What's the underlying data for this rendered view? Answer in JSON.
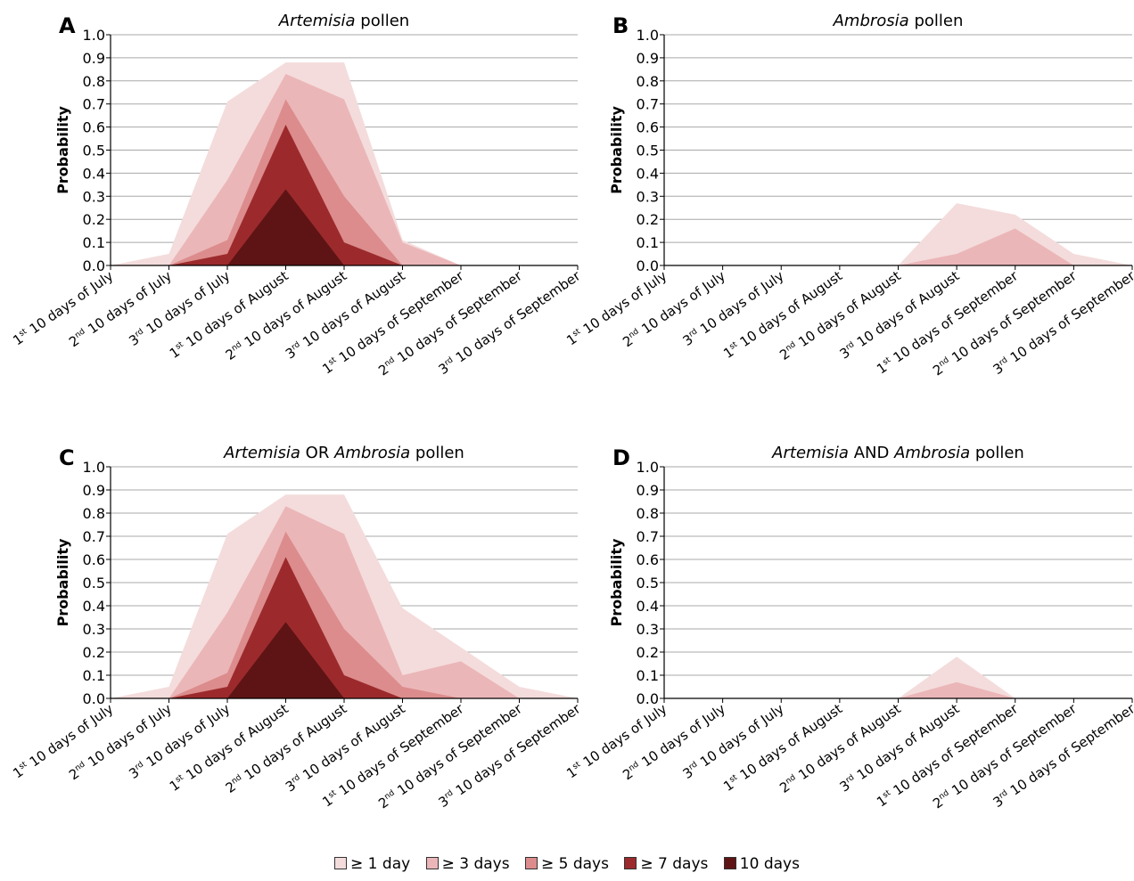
{
  "chart_data": [
    {
      "type": "area",
      "letter": "A",
      "title_parts": [
        {
          "text": "Artemisia",
          "italic": true
        },
        {
          "text": " pollen",
          "italic": false
        }
      ],
      "ylabel": "Probability",
      "ylim": [
        0,
        1.0
      ],
      "yticks": [
        "0.0",
        "0.1",
        "0.2",
        "0.3",
        "0.4",
        "0.5",
        "0.6",
        "0.7",
        "0.8",
        "0.9",
        "1.0"
      ],
      "categories": [
        {
          "ord": "1",
          "sup": "st",
          "rest": " 10 days of July"
        },
        {
          "ord": "2",
          "sup": "nd",
          "rest": " 10 days of July"
        },
        {
          "ord": "3",
          "sup": "rd",
          "rest": " 10 days of July"
        },
        {
          "ord": "1",
          "sup": "st",
          "rest": " 10 days of August"
        },
        {
          "ord": "2",
          "sup": "nd",
          "rest": " 10 days of August"
        },
        {
          "ord": "3",
          "sup": "rd",
          "rest": " 10 days of August"
        },
        {
          "ord": "1",
          "sup": "st",
          "rest": " 10 days of September"
        },
        {
          "ord": "2",
          "sup": "nd",
          "rest": " 10 days of September"
        },
        {
          "ord": "3",
          "sup": "rd",
          "rest": " 10 days of September"
        }
      ],
      "grid": true,
      "series": [
        {
          "name": "≥ 1 day",
          "values": [
            0.0,
            0.05,
            0.71,
            0.88,
            0.88,
            0.11,
            0.0,
            0.0,
            0.0
          ]
        },
        {
          "name": "≥ 3 days",
          "values": [
            0.0,
            0.0,
            0.37,
            0.83,
            0.72,
            0.1,
            0.0,
            0.0,
            0.0
          ]
        },
        {
          "name": "≥ 5 days",
          "values": [
            0.0,
            0.0,
            0.11,
            0.72,
            0.3,
            0.0,
            0.0,
            0.0,
            0.0
          ]
        },
        {
          "name": "≥ 7 days",
          "values": [
            0.0,
            0.0,
            0.05,
            0.61,
            0.1,
            0.0,
            0.0,
            0.0,
            0.0
          ]
        },
        {
          "name": "10 days",
          "values": [
            0.0,
            0.0,
            0.0,
            0.33,
            0.0,
            0.0,
            0.0,
            0.0,
            0.0
          ]
        }
      ]
    },
    {
      "type": "area",
      "letter": "B",
      "title_parts": [
        {
          "text": "Ambrosia",
          "italic": true
        },
        {
          "text": " pollen",
          "italic": false
        }
      ],
      "ylabel": "Probability",
      "ylim": [
        0,
        1.0
      ],
      "yticks": [
        "0.0",
        "0.1",
        "0.2",
        "0.3",
        "0.4",
        "0.5",
        "0.6",
        "0.7",
        "0.8",
        "0.9",
        "1.0"
      ],
      "categories": [
        {
          "ord": "1",
          "sup": "st",
          "rest": " 10 days of July"
        },
        {
          "ord": "2",
          "sup": "nd",
          "rest": " 10 days of July"
        },
        {
          "ord": "3",
          "sup": "rd",
          "rest": " 10 days of July"
        },
        {
          "ord": "1",
          "sup": "st",
          "rest": " 10 days of August"
        },
        {
          "ord": "2",
          "sup": "nd",
          "rest": " 10 days of August"
        },
        {
          "ord": "3",
          "sup": "rd",
          "rest": " 10 days of August"
        },
        {
          "ord": "1",
          "sup": "st",
          "rest": " 10 days of September"
        },
        {
          "ord": "2",
          "sup": "nd",
          "rest": " 10 days of September"
        },
        {
          "ord": "3",
          "sup": "rd",
          "rest": " 10 days of September"
        }
      ],
      "grid": true,
      "series": [
        {
          "name": "≥ 1 day",
          "values": [
            0.0,
            0.0,
            0.0,
            0.0,
            0.0,
            0.27,
            0.22,
            0.05,
            0.0
          ]
        },
        {
          "name": "≥ 3 days",
          "values": [
            0.0,
            0.0,
            0.0,
            0.0,
            0.0,
            0.05,
            0.16,
            0.0,
            0.0
          ]
        },
        {
          "name": "≥ 5 days",
          "values": [
            0.0,
            0.0,
            0.0,
            0.0,
            0.0,
            0.0,
            0.0,
            0.0,
            0.0
          ]
        },
        {
          "name": "≥ 7 days",
          "values": [
            0.0,
            0.0,
            0.0,
            0.0,
            0.0,
            0.0,
            0.0,
            0.0,
            0.0
          ]
        },
        {
          "name": "10 days",
          "values": [
            0.0,
            0.0,
            0.0,
            0.0,
            0.0,
            0.0,
            0.0,
            0.0,
            0.0
          ]
        }
      ]
    },
    {
      "type": "area",
      "letter": "C",
      "title_parts": [
        {
          "text": "Artemisia",
          "italic": true
        },
        {
          "text": " OR ",
          "italic": false
        },
        {
          "text": "Ambrosia",
          "italic": true
        },
        {
          "text": " pollen",
          "italic": false
        }
      ],
      "ylabel": "Probability",
      "ylim": [
        0,
        1.0
      ],
      "yticks": [
        "0.0",
        "0.1",
        "0.2",
        "0.3",
        "0.4",
        "0.5",
        "0.6",
        "0.7",
        "0.8",
        "0.9",
        "1.0"
      ],
      "categories": [
        {
          "ord": "1",
          "sup": "st",
          "rest": " 10 days of July"
        },
        {
          "ord": "2",
          "sup": "nd",
          "rest": " 10 days of July"
        },
        {
          "ord": "3",
          "sup": "rd",
          "rest": " 10 days of July"
        },
        {
          "ord": "1",
          "sup": "st",
          "rest": " 10 days of August"
        },
        {
          "ord": "2",
          "sup": "nd",
          "rest": " 10 days of August"
        },
        {
          "ord": "3",
          "sup": "rd",
          "rest": " 10 days of August"
        },
        {
          "ord": "1",
          "sup": "st",
          "rest": " 10 days of September"
        },
        {
          "ord": "2",
          "sup": "nd",
          "rest": " 10 days of September"
        },
        {
          "ord": "3",
          "sup": "rd",
          "rest": " 10 days of September"
        }
      ],
      "grid": true,
      "series": [
        {
          "name": "≥ 1 day",
          "values": [
            0.0,
            0.05,
            0.71,
            0.88,
            0.88,
            0.39,
            0.22,
            0.05,
            0.0
          ]
        },
        {
          "name": "≥ 3 days",
          "values": [
            0.0,
            0.0,
            0.37,
            0.83,
            0.71,
            0.1,
            0.16,
            0.0,
            0.0
          ]
        },
        {
          "name": "≥ 5 days",
          "values": [
            0.0,
            0.0,
            0.11,
            0.72,
            0.3,
            0.05,
            0.0,
            0.0,
            0.0
          ]
        },
        {
          "name": "≥ 7 days",
          "values": [
            0.0,
            0.0,
            0.05,
            0.61,
            0.1,
            0.0,
            0.0,
            0.0,
            0.0
          ]
        },
        {
          "name": "10 days",
          "values": [
            0.0,
            0.0,
            0.0,
            0.33,
            0.0,
            0.0,
            0.0,
            0.0,
            0.0
          ]
        }
      ]
    },
    {
      "type": "area",
      "letter": "D",
      "title_parts": [
        {
          "text": "Artemisia",
          "italic": true
        },
        {
          "text": " AND ",
          "italic": false
        },
        {
          "text": "Ambrosia",
          "italic": true
        },
        {
          "text": " pollen",
          "italic": false
        }
      ],
      "ylabel": "Probability",
      "ylim": [
        0,
        1.0
      ],
      "yticks": [
        "0.0",
        "0.1",
        "0.2",
        "0.3",
        "0.4",
        "0.5",
        "0.6",
        "0.7",
        "0.8",
        "0.9",
        "1.0"
      ],
      "categories": [
        {
          "ord": "1",
          "sup": "st",
          "rest": " 10 days of July"
        },
        {
          "ord": "2",
          "sup": "nd",
          "rest": " 10 days of July"
        },
        {
          "ord": "3",
          "sup": "rd",
          "rest": " 10 days of July"
        },
        {
          "ord": "1",
          "sup": "st",
          "rest": " 10 days of August"
        },
        {
          "ord": "2",
          "sup": "nd",
          "rest": " 10 days of August"
        },
        {
          "ord": "3",
          "sup": "rd",
          "rest": " 10 days of August"
        },
        {
          "ord": "1",
          "sup": "st",
          "rest": " 10 days of September"
        },
        {
          "ord": "2",
          "sup": "nd",
          "rest": " 10 days of September"
        },
        {
          "ord": "3",
          "sup": "rd",
          "rest": " 10 days of September"
        }
      ],
      "grid": true,
      "series": [
        {
          "name": "≥ 1 day",
          "values": [
            0.0,
            0.0,
            0.0,
            0.0,
            0.0,
            0.18,
            0.0,
            0.0,
            0.0
          ]
        },
        {
          "name": "≥ 3 days",
          "values": [
            0.0,
            0.0,
            0.0,
            0.0,
            0.0,
            0.07,
            0.0,
            0.0,
            0.0
          ]
        },
        {
          "name": "≥ 5 days",
          "values": [
            0.0,
            0.0,
            0.0,
            0.0,
            0.0,
            0.0,
            0.0,
            0.0,
            0.0
          ]
        },
        {
          "name": "≥ 7 days",
          "values": [
            0.0,
            0.0,
            0.0,
            0.0,
            0.0,
            0.0,
            0.0,
            0.0,
            0.0
          ]
        },
        {
          "name": "10 days",
          "values": [
            0.0,
            0.0,
            0.0,
            0.0,
            0.0,
            0.0,
            0.0,
            0.0,
            0.0
          ]
        }
      ]
    }
  ],
  "legend": {
    "placement": "bottom",
    "items": [
      {
        "label": "≥ 1 day",
        "color": "#f4dcdc"
      },
      {
        "label": "≥ 3 days",
        "color": "#ebb6b8"
      },
      {
        "label": "≥ 5 days",
        "color": "#dc8c8c"
      },
      {
        "label": "≥ 7 days",
        "color": "#9c2a2c"
      },
      {
        "label": "10 days",
        "color": "#5e1414"
      }
    ]
  }
}
